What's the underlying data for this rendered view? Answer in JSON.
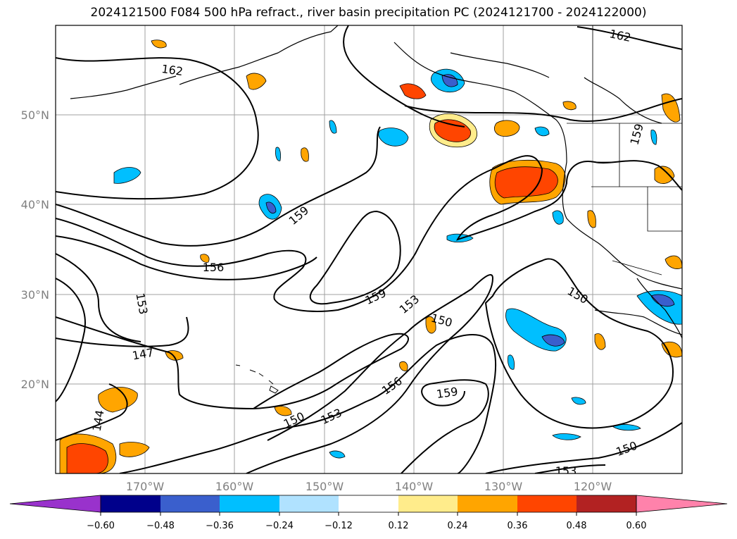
{
  "title": "2024121500 F084 500 hPa refract., river basin precipitation PC (2024121700 - 2024122000)",
  "lat_labels": [
    "50°N",
    "40°N",
    "30°N",
    "20°N"
  ],
  "lon_labels": [
    "170°W",
    "160°W",
    "150°W",
    "140°W",
    "130°W",
    "120°W"
  ],
  "contour_labels": [
    "162",
    "162",
    "159",
    "159",
    "159",
    "159",
    "156",
    "156",
    "153",
    "153",
    "153",
    "153",
    "150",
    "150",
    "150",
    "150",
    "147",
    "144",
    "159"
  ],
  "colorbar": {
    "ticks": [
      "−0.60",
      "−0.48",
      "−0.36",
      "−0.24",
      "−0.12",
      "0.12",
      "0.24",
      "0.36",
      "0.48",
      "0.60"
    ],
    "colors": [
      "#9932cc",
      "#00008b",
      "#3a5fcd",
      "#00bfff",
      "#b0e2ff",
      "#ffffff",
      "#ffec8b",
      "#ffa500",
      "#ff4500",
      "#b22222",
      "#ff82ab"
    ]
  },
  "colors": {
    "contour": "#000000",
    "grid": "#a0a0a0",
    "axis_label": "#808080"
  }
}
